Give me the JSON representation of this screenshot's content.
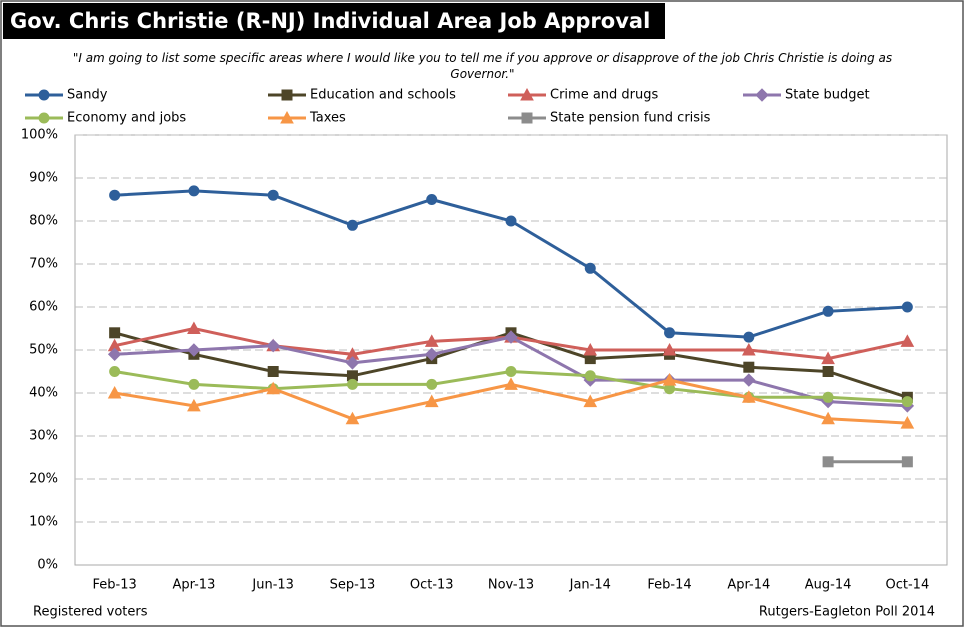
{
  "chart_data": {
    "type": "line",
    "title": "Gov. Chris Christie (R-NJ) Individual Area Job Approval",
    "subtitle": "\"I am going to list some specific areas where I would like you to tell me if you approve or disapprove of the job Chris Christie is doing as Governor.\"",
    "categories": [
      "Feb-13",
      "Apr-13",
      "Jun-13",
      "Sep-13",
      "Oct-13",
      "Nov-13",
      "Jan-14",
      "Feb-14",
      "Apr-14",
      "Aug-14",
      "Oct-14"
    ],
    "series": [
      {
        "name": "Sandy",
        "color": "#2e5f9a",
        "marker": "circle",
        "values": [
          86,
          87,
          86,
          79,
          85,
          80,
          69,
          54,
          53,
          59,
          60
        ]
      },
      {
        "name": "Education and schools",
        "color": "#4d4528",
        "marker": "square",
        "values": [
          54,
          49,
          45,
          44,
          48,
          54,
          48,
          49,
          46,
          45,
          39
        ]
      },
      {
        "name": "Crime and drugs",
        "color": "#cf5f5a",
        "marker": "triangle",
        "values": [
          51,
          55,
          51,
          49,
          52,
          53,
          50,
          50,
          50,
          48,
          52
        ]
      },
      {
        "name": "State budget",
        "color": "#8e76ad",
        "marker": "diamond",
        "values": [
          49,
          50,
          51,
          47,
          49,
          53,
          43,
          43,
          43,
          38,
          37
        ]
      },
      {
        "name": "Economy and jobs",
        "color": "#9bbb59",
        "marker": "circle",
        "values": [
          45,
          42,
          41,
          42,
          42,
          45,
          44,
          41,
          39,
          39,
          38
        ]
      },
      {
        "name": "Taxes",
        "color": "#f79646",
        "marker": "triangle",
        "values": [
          40,
          37,
          41,
          34,
          38,
          42,
          38,
          43,
          39,
          34,
          33
        ]
      },
      {
        "name": "State pension fund crisis",
        "color": "#8c8c8c",
        "marker": "square",
        "values": [
          null,
          null,
          null,
          null,
          null,
          null,
          null,
          null,
          null,
          24,
          24
        ]
      }
    ],
    "ylim": [
      0,
      100
    ],
    "yticks": [
      {
        "value": 0,
        "label": "0%"
      },
      {
        "value": 10,
        "label": "10%"
      },
      {
        "value": 20,
        "label": "20%"
      },
      {
        "value": 30,
        "label": "30%"
      },
      {
        "value": 40,
        "label": "40%"
      },
      {
        "value": 50,
        "label": "50%"
      },
      {
        "value": 60,
        "label": "60%"
      },
      {
        "value": 70,
        "label": "70%"
      },
      {
        "value": 80,
        "label": "80%"
      },
      {
        "value": 90,
        "label": "90%"
      },
      {
        "value": 100,
        "label": "100%"
      }
    ],
    "grid": true,
    "notes": [
      "Registered voters",
      "Rutgers-Eagleton Poll 2014"
    ]
  }
}
